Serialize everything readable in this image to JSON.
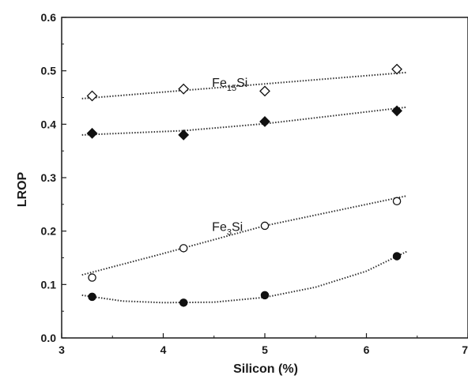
{
  "chart_data": {
    "type": "scatter",
    "xlabel": "Silicon (%)",
    "ylabel": "LROP",
    "xlim": [
      3,
      7
    ],
    "ylim": [
      0,
      0.6
    ],
    "xticks": [
      "3",
      "4",
      "5",
      "6",
      "7"
    ],
    "yticks": [
      "0.0",
      "0.1",
      "0.2",
      "0.3",
      "0.4",
      "0.5",
      "0.6"
    ],
    "grid": false,
    "series": [
      {
        "marker": "open-diamond",
        "x": [
          3.3,
          4.2,
          5.0,
          6.3
        ],
        "y": [
          0.453,
          0.466,
          0.462,
          0.503
        ],
        "fit": [
          [
            3.2,
            0.448
          ],
          [
            6.4,
            0.497
          ]
        ]
      },
      {
        "marker": "filled-diamond",
        "x": [
          3.3,
          4.2,
          5.0,
          6.3
        ],
        "y": [
          0.383,
          0.38,
          0.405,
          0.425
        ],
        "fit": [
          [
            3.2,
            0.38
          ],
          [
            4.2,
            0.388
          ],
          [
            5.0,
            0.401
          ],
          [
            6.4,
            0.432
          ]
        ]
      },
      {
        "marker": "open-circle",
        "x": [
          3.3,
          4.2,
          5.0,
          6.3
        ],
        "y": [
          0.113,
          0.168,
          0.21,
          0.256
        ],
        "fit": [
          [
            3.2,
            0.118
          ],
          [
            4.0,
            0.158
          ],
          [
            5.0,
            0.21
          ],
          [
            6.4,
            0.266
          ]
        ]
      },
      {
        "marker": "filled-circle",
        "x": [
          3.3,
          4.2,
          5.0,
          6.3
        ],
        "y": [
          0.077,
          0.066,
          0.08,
          0.153
        ],
        "fit": [
          [
            3.2,
            0.08
          ],
          [
            3.6,
            0.069
          ],
          [
            4.0,
            0.066
          ],
          [
            4.5,
            0.067
          ],
          [
            5.0,
            0.076
          ],
          [
            5.5,
            0.095
          ],
          [
            6.0,
            0.125
          ],
          [
            6.4,
            0.162
          ]
        ]
      }
    ],
    "annotations": [
      {
        "main": "Fe",
        "sub": "15",
        "tail": "Si",
        "x": 4.48,
        "y": 0.47
      },
      {
        "main": "Fe",
        "sub": "3",
        "tail": "Si",
        "x": 4.48,
        "y": 0.2
      }
    ]
  }
}
